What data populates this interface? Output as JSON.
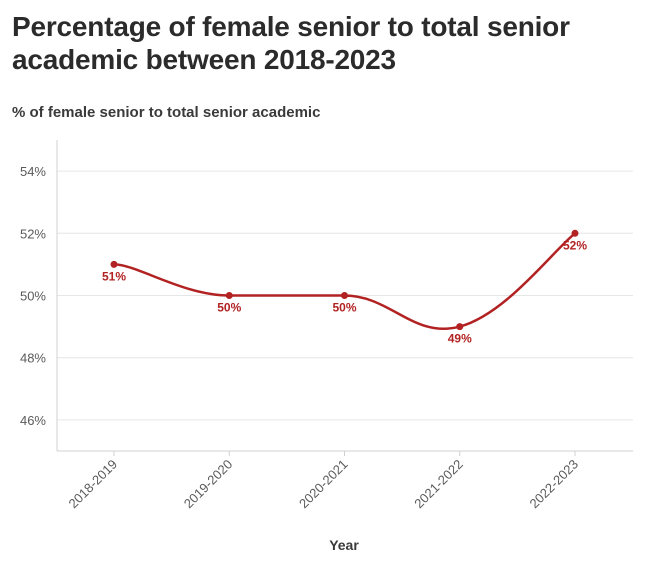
{
  "title": "Percentage of female senior to total senior academic between 2018-2023",
  "subtitle": "% of female senior to total senior academic",
  "colors": {
    "line": "#b22222",
    "grid": "#e6e6e6",
    "axis": "#d0d0d0"
  },
  "chart_data": {
    "type": "line",
    "title": "Percentage of female senior to total senior academic between 2018-2023",
    "subtitle": "% of female senior to total senior academic",
    "xlabel": "Year",
    "ylabel": "",
    "categories": [
      "2018-2019",
      "2019-2020",
      "2020-2021",
      "2021-2022",
      "2022-2023"
    ],
    "series": [
      {
        "values": [
          51,
          50,
          50,
          49,
          52
        ],
        "labels": [
          "51%",
          "50%",
          "50%",
          "49%",
          "52%"
        ]
      }
    ],
    "yticks": [
      46,
      48,
      50,
      52,
      54
    ],
    "ytick_labels": [
      "46%",
      "48%",
      "50%",
      "52%",
      "54%"
    ],
    "ylim": [
      45,
      55
    ],
    "grid": true,
    "legend": "none"
  }
}
